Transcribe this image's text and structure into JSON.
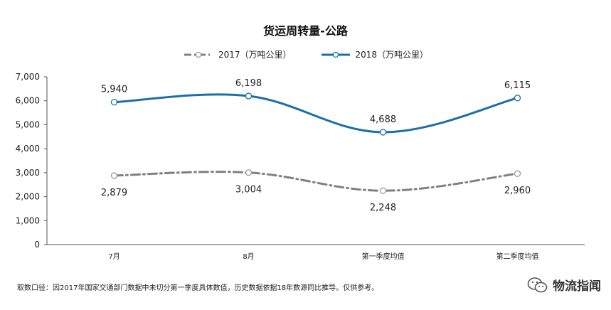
{
  "chart_data": {
    "type": "line",
    "title": "货运周转量-公路",
    "categories": [
      "7月",
      "8月",
      "第一季度均值",
      "第二季度均值"
    ],
    "series": [
      {
        "name": "2017（万吨公里）",
        "values": [
          2879,
          3004,
          2248,
          2960
        ],
        "color": "#808080",
        "style": "dash-dot"
      },
      {
        "name": "2018（万吨公里）",
        "values": [
          5940,
          6198,
          4688,
          6115
        ],
        "color": "#1a6fa8",
        "style": "solid"
      }
    ],
    "ylim": [
      0,
      7000
    ],
    "yticks": [
      0,
      1000,
      2000,
      3000,
      4000,
      5000,
      6000,
      7000
    ],
    "ytick_labels": [
      "0",
      "1,000",
      "2,000",
      "3,000",
      "4,000",
      "5,000",
      "6,000",
      "7,000"
    ],
    "data_labels_2017": [
      "2,879",
      "3,004",
      "2,248",
      "2,960"
    ],
    "data_labels_2018": [
      "5,940",
      "6,198",
      "4,688",
      "6,115"
    ],
    "xlabel": "",
    "ylabel": ""
  },
  "footer": {
    "note": "取数口径：因2017年国家交通部门数据中未切分第一季度具体数值，历史数据依据18年数源同比推导。仅供参考。",
    "brand": "物流指闻"
  }
}
